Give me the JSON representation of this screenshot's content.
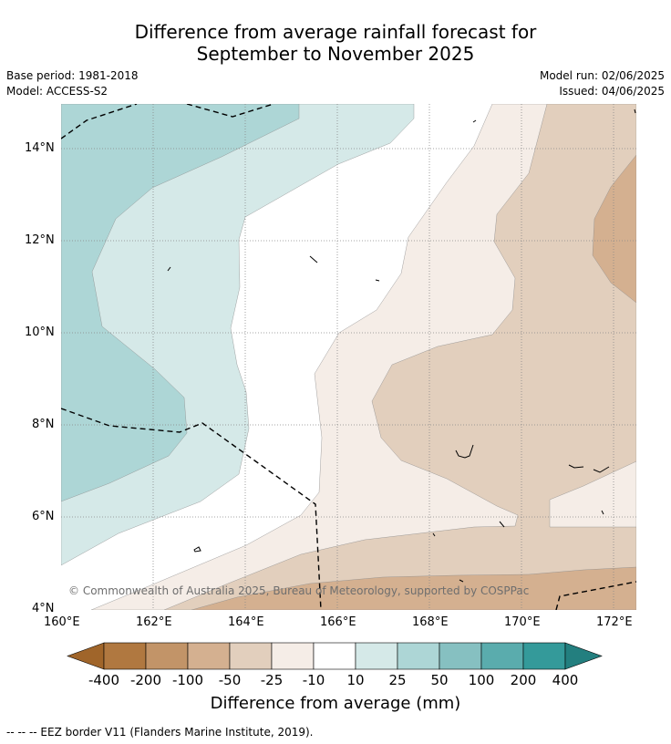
{
  "title_line1": "Difference from average rainfall forecast for",
  "title_line2": "September to November 2025",
  "meta": {
    "base_period": "Base period: 1981-2018",
    "model": "Model: ACCESS-S2",
    "model_run": "Model run: 02/06/2025",
    "issued": "Issued: 04/06/2025"
  },
  "copyright": "© Commonwealth of Australia 2025, Bureau of Meteorology, supported by COSPPac",
  "legend_note": "--  --  -- EEZ border V11 (Flanders Marine Institute, 2019).",
  "axes": {
    "lat_ticks": [
      "14°N",
      "12°N",
      "10°N",
      "8°N",
      "6°N",
      "4°N"
    ],
    "lon_ticks": [
      "160°E",
      "162°E",
      "164°E",
      "166°E",
      "168°E",
      "170°E",
      "172°E"
    ],
    "lat_range": [
      4,
      15
    ],
    "lon_range": [
      160,
      172.5
    ]
  },
  "colorbar": {
    "title": "Difference from average (mm)",
    "labels": [
      "-400",
      "-200",
      "-100",
      "-50",
      "-25",
      "-10",
      "10",
      "25",
      "50",
      "100",
      "200",
      "400"
    ],
    "colors": [
      "#a0652a",
      "#b07840",
      "#c29468",
      "#d4b090",
      "#e2cfbd",
      "#f5ede7",
      "#ffffff",
      "#d5e9e8",
      "#add6d6",
      "#86c0c1",
      "#5aacad",
      "#349a9a",
      "#237f7f"
    ]
  },
  "map_colors": {
    "lt25": "#e2cfbd",
    "lt50": "#d4b090",
    "lt10": "#f5ede7",
    "neutral": "#ffffff",
    "gt10": "#d5e9e8",
    "gt25": "#add6d6"
  }
}
